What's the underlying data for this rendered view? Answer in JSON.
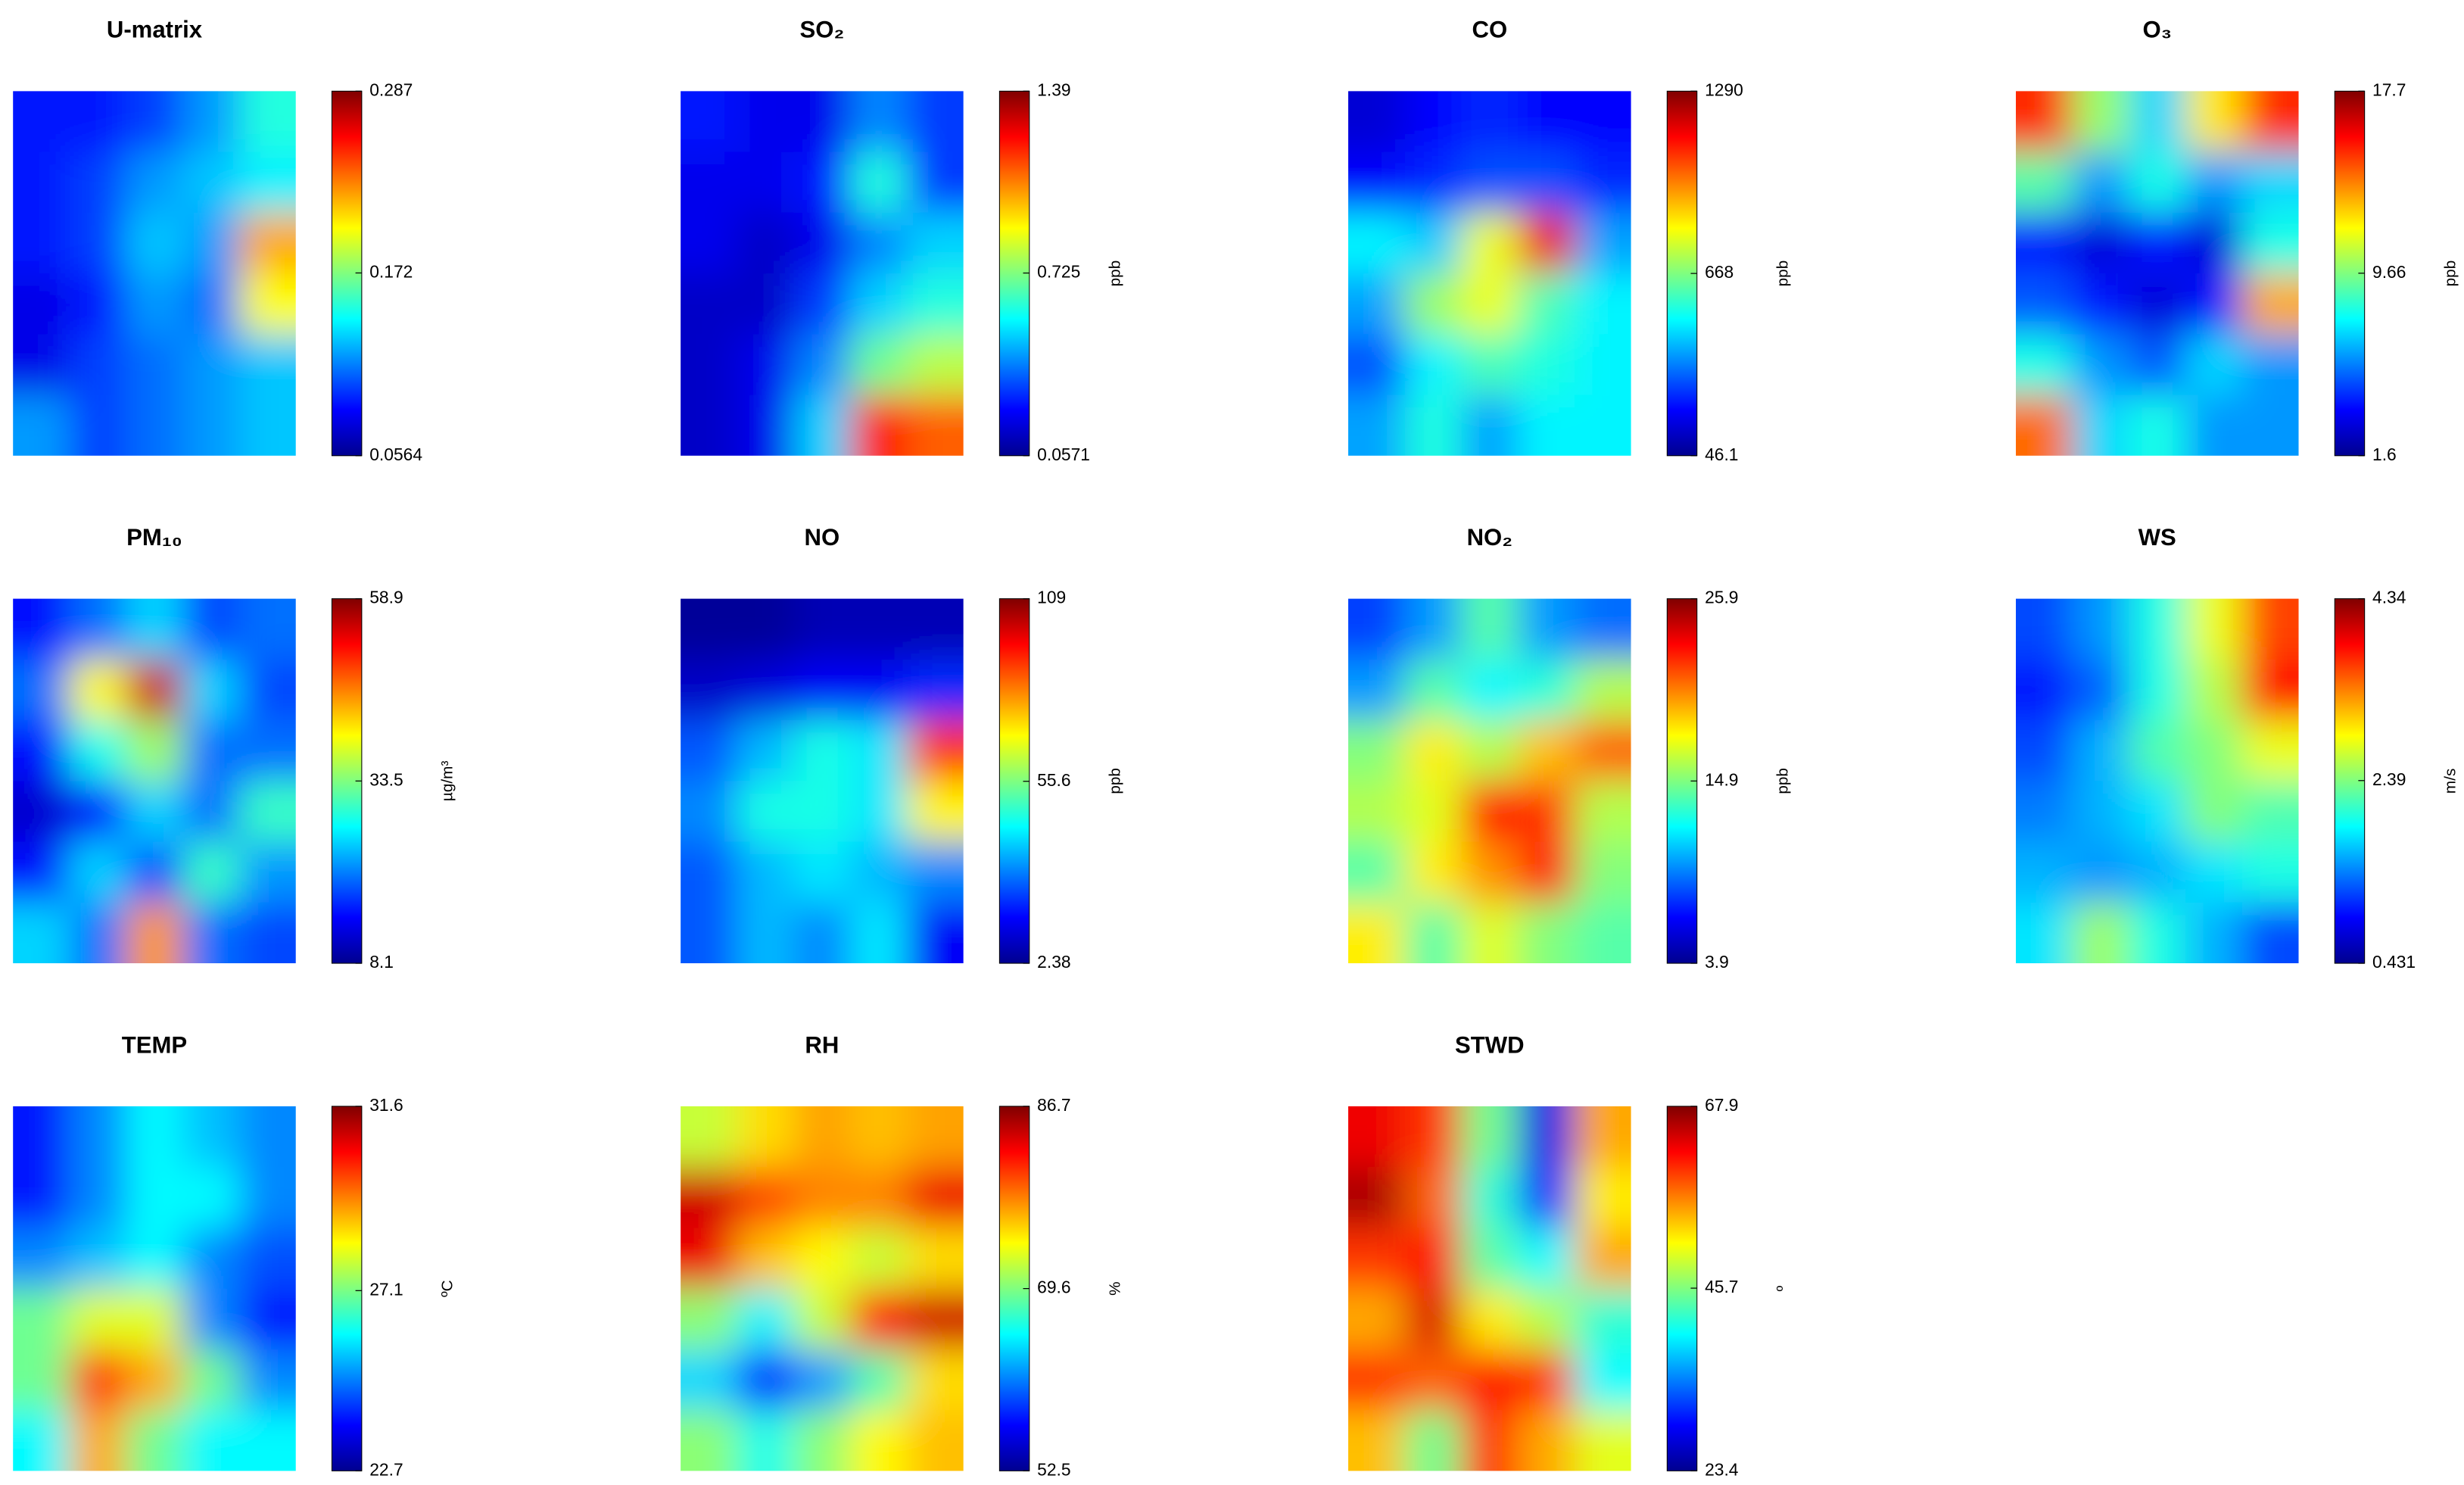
{
  "chart_data": [
    {
      "type": "heatmap",
      "title": "U-matrix",
      "colormap": "jet",
      "zlim": [
        0.0564,
        0.287
      ],
      "zticks": [
        0.0564,
        0.172,
        0.287
      ],
      "values": [
        [
          0.09,
          0.09,
          0.1,
          0.12,
          0.15
        ],
        [
          0.09,
          0.1,
          0.12,
          0.13,
          0.14
        ],
        [
          0.09,
          0.1,
          0.13,
          0.12,
          0.22
        ],
        [
          0.08,
          0.09,
          0.12,
          0.11,
          0.2
        ],
        [
          0.08,
          0.1,
          0.11,
          0.12,
          0.13
        ],
        [
          0.12,
          0.1,
          0.11,
          0.12,
          0.13
        ]
      ]
    },
    {
      "type": "heatmap",
      "title": "SO₂",
      "colorbar_label": "ppb",
      "colormap": "jet",
      "zlim": [
        0.0571,
        1.39
      ],
      "zticks": [
        0.0571,
        0.725,
        1.39
      ],
      "values": [
        [
          0.25,
          0.2,
          0.2,
          0.4,
          0.3
        ],
        [
          0.2,
          0.2,
          0.25,
          0.6,
          0.3
        ],
        [
          0.2,
          0.15,
          0.2,
          0.4,
          0.5
        ],
        [
          0.15,
          0.15,
          0.3,
          0.5,
          0.6
        ],
        [
          0.15,
          0.2,
          0.4,
          0.7,
          0.8
        ],
        [
          0.15,
          0.2,
          0.5,
          1.2,
          1.1
        ]
      ]
    },
    {
      "type": "heatmap",
      "title": "CO",
      "colorbar_label": "ppb",
      "colormap": "jet",
      "zlim": [
        46.1,
        1290
      ],
      "zticks": [
        46.1,
        668,
        1290
      ],
      "values": [
        [
          150,
          200,
          250,
          200,
          200
        ],
        [
          200,
          250,
          300,
          300,
          250
        ],
        [
          500,
          450,
          800,
          1150,
          400
        ],
        [
          400,
          700,
          800,
          600,
          500
        ],
        [
          300,
          500,
          600,
          550,
          500
        ],
        [
          400,
          550,
          400,
          500,
          500
        ]
      ]
    },
    {
      "type": "heatmap",
      "title": "O₃",
      "colorbar_label": "ppb",
      "colormap": "jet",
      "zlim": [
        1.6,
        17.7
      ],
      "zticks": [
        1.6,
        9.66,
        17.7
      ],
      "values": [
        [
          15,
          10,
          7,
          12,
          15
        ],
        [
          9,
          6,
          8,
          6,
          7
        ],
        [
          4,
          3,
          4,
          3,
          8
        ],
        [
          5,
          4,
          3,
          4,
          13
        ],
        [
          8,
          6,
          5,
          7,
          6
        ],
        [
          14,
          7,
          8,
          6,
          6
        ]
      ]
    },
    {
      "type": "heatmap",
      "title": "PM₁₀",
      "colorbar_label": "µg/m³",
      "colormap": "jet",
      "zlim": [
        8.1,
        58.9
      ],
      "zticks": [
        8.1,
        33.5,
        58.9
      ],
      "values": [
        [
          15,
          20,
          25,
          18,
          20
        ],
        [
          20,
          40,
          55,
          25,
          18
        ],
        [
          15,
          28,
          35,
          20,
          20
        ],
        [
          12,
          15,
          25,
          20,
          30
        ],
        [
          15,
          25,
          18,
          30,
          22
        ],
        [
          25,
          20,
          45,
          20,
          18
        ]
      ]
    },
    {
      "type": "heatmap",
      "title": "NO",
      "colorbar_label": "ppb",
      "colormap": "jet",
      "zlim": [
        2.38,
        109
      ],
      "zticks": [
        2.38,
        55.6,
        109
      ],
      "values": [
        [
          5,
          5,
          8,
          8,
          8
        ],
        [
          10,
          12,
          15,
          15,
          20
        ],
        [
          25,
          35,
          45,
          40,
          90
        ],
        [
          30,
          45,
          45,
          40,
          70
        ],
        [
          25,
          35,
          40,
          35,
          30
        ],
        [
          25,
          35,
          30,
          40,
          15
        ]
      ]
    },
    {
      "type": "heatmap",
      "title": "NO₂",
      "colorbar_label": "ppb",
      "colormap": "jet",
      "zlim": [
        3.9,
        25.9
      ],
      "zticks": [
        3.9,
        14.9,
        25.9
      ],
      "values": [
        [
          8,
          10,
          14,
          10,
          9
        ],
        [
          10,
          14,
          12,
          13,
          16
        ],
        [
          15,
          18,
          16,
          19,
          21
        ],
        [
          16,
          17,
          23,
          22,
          16
        ],
        [
          14,
          18,
          20,
          23,
          15
        ],
        [
          18,
          14,
          17,
          15,
          14
        ]
      ]
    },
    {
      "type": "heatmap",
      "title": "WS",
      "colorbar_label": "m/s",
      "colormap": "jet",
      "zlim": [
        0.431,
        4.34
      ],
      "zticks": [
        0.431,
        2.39,
        4.34
      ],
      "values": [
        [
          1.2,
          1.5,
          2.0,
          2.8,
          3.6
        ],
        [
          1.0,
          1.3,
          2.0,
          2.6,
          3.8
        ],
        [
          1.2,
          1.6,
          2.2,
          2.4,
          2.8
        ],
        [
          1.4,
          1.6,
          1.8,
          2.4,
          2.2
        ],
        [
          1.6,
          1.5,
          1.6,
          1.8,
          2.0
        ],
        [
          1.8,
          2.5,
          2.0,
          1.6,
          1.2
        ]
      ]
    },
    {
      "type": "heatmap",
      "title": "TEMP",
      "colorbar_label": "ºC",
      "colormap": "jet",
      "zlim": [
        22.7,
        31.6
      ],
      "zticks": [
        22.7,
        27.1,
        31.6
      ],
      "values": [
        [
          24,
          25,
          26,
          25.5,
          25
        ],
        [
          24,
          25,
          26,
          26,
          25
        ],
        [
          25,
          25.5,
          26,
          25,
          24.5
        ],
        [
          27,
          28,
          28,
          25,
          24
        ],
        [
          27,
          30,
          29,
          27,
          25
        ],
        [
          26,
          29,
          27,
          26,
          26
        ]
      ]
    },
    {
      "type": "heatmap",
      "title": "RH",
      "colorbar_label": "%",
      "colormap": "jet",
      "zlim": [
        52.5,
        86.7
      ],
      "zticks": [
        52.5,
        69.6,
        86.7
      ],
      "values": [
        [
          72,
          75,
          77,
          76,
          77
        ],
        [
          84,
          80,
          78,
          78,
          83
        ],
        [
          83,
          76,
          74,
          72,
          75
        ],
        [
          70,
          65,
          72,
          82,
          84
        ],
        [
          64,
          58,
          62,
          68,
          75
        ],
        [
          70,
          66,
          70,
          74,
          76
        ]
      ]
    },
    {
      "type": "heatmap",
      "title": "STWD",
      "colorbar_label": "º",
      "colormap": "jet",
      "zlim": [
        23.4,
        67.9
      ],
      "zticks": [
        23.4,
        45.7,
        67.9
      ],
      "values": [
        [
          63,
          60,
          45,
          28,
          55
        ],
        [
          66,
          58,
          42,
          30,
          52
        ],
        [
          60,
          62,
          44,
          40,
          55
        ],
        [
          55,
          64,
          52,
          48,
          42
        ],
        [
          60,
          58,
          62,
          60,
          40
        ],
        [
          54,
          45,
          60,
          55,
          50
        ]
      ]
    }
  ]
}
